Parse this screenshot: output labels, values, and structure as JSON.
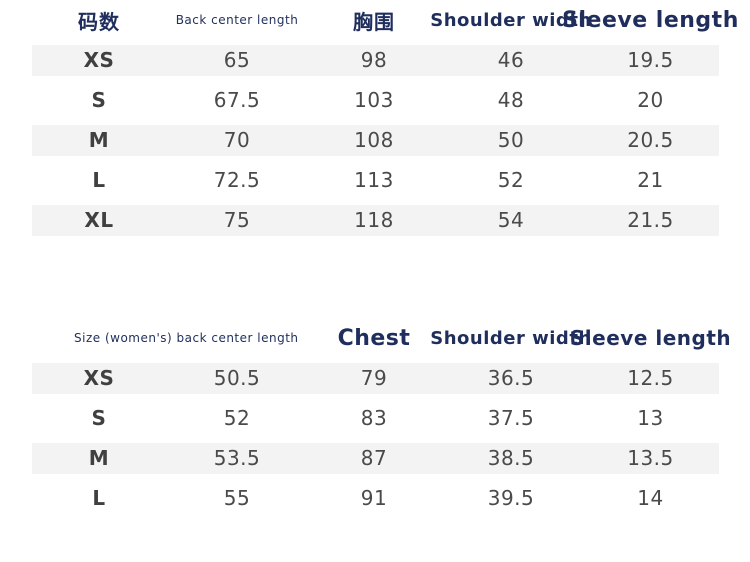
{
  "men_table": {
    "headers": {
      "size": "码数",
      "back_center_length": "Back center length",
      "chest": "胸围",
      "shoulder_width": "Shoulder width",
      "sleeve_length": "Sleeve length"
    },
    "rows": [
      [
        "XS",
        "65",
        "98",
        "46",
        "19.5"
      ],
      [
        "S",
        "67.5",
        "103",
        "48",
        "20"
      ],
      [
        "M",
        "70",
        "108",
        "50",
        "20.5"
      ],
      [
        "L",
        "72.5",
        "113",
        "52",
        "21"
      ],
      [
        "XL",
        "75",
        "118",
        "54",
        "21.5"
      ]
    ]
  },
  "women_table": {
    "headers": {
      "size_back_center": "Size (women's) back center length",
      "chest": "Chest",
      "shoulder_width": "Shoulder width",
      "sleeve_length": "Sleeve length"
    },
    "rows": [
      [
        "XS",
        "50.5",
        "79",
        "36.5",
        "12.5"
      ],
      [
        "S",
        "52",
        "83",
        "37.5",
        "13"
      ],
      [
        "M",
        "53.5",
        "87",
        "38.5",
        "13.5"
      ],
      [
        "L",
        "55",
        "91",
        "39.5",
        "14"
      ]
    ]
  },
  "colors": {
    "header_text": "#1f2e5c",
    "body_text": "#4a4a4a",
    "stripe": "#f3f3f3"
  }
}
